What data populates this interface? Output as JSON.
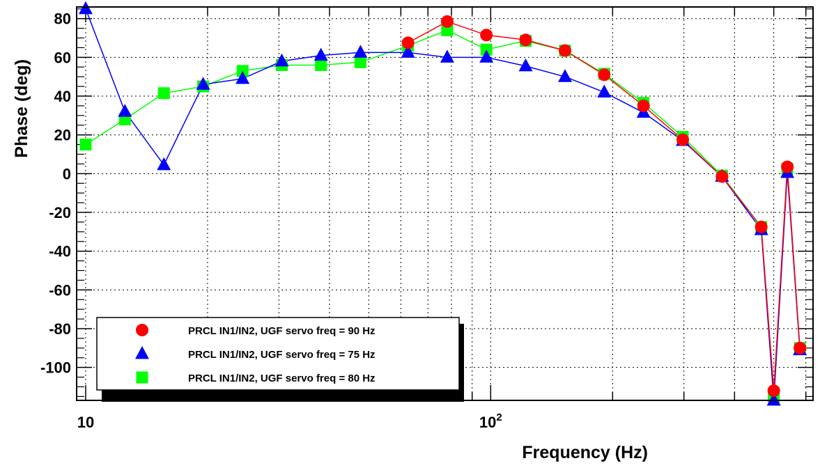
{
  "chart_data": {
    "type": "line",
    "title": "",
    "xlabel": "Frequency (Hz)",
    "ylabel": "Phase (deg)",
    "x_scale": "log",
    "xlim": [
      9.5,
      625
    ],
    "ylim": [
      -117,
      86
    ],
    "grid": true,
    "x_ticks": [
      {
        "value": 10,
        "label": "10",
        "sup": ""
      },
      {
        "value": 100,
        "label": "10",
        "sup": "2"
      }
    ],
    "y_ticks": [
      80,
      60,
      40,
      20,
      0,
      -20,
      -40,
      -60,
      -80,
      -100
    ],
    "legend_position": "bottom-left",
    "series": [
      {
        "name": "PRCL IN1/IN2, UGF servo freq = 90 Hz",
        "color": "#ff0000",
        "marker": "circle",
        "points": [
          [
            62.5,
            67.5
          ],
          [
            78.1,
            78.5
          ],
          [
            97.6,
            71.5
          ],
          [
            122,
            69
          ],
          [
            152.6,
            63.5
          ],
          [
            190.7,
            51
          ],
          [
            238.4,
            35
          ],
          [
            298,
            17.5
          ],
          [
            372.5,
            -1.5
          ],
          [
            465.7,
            -27.5
          ],
          [
            500.0,
            -112
          ],
          [
            540,
            3.5
          ],
          [
            580,
            -90
          ]
        ]
      },
      {
        "name": "PRCL IN1/IN2, UGF servo freq = 75 Hz",
        "color": "#0000ff",
        "marker": "triangle",
        "points": [
          [
            10,
            85
          ],
          [
            12.5,
            32
          ],
          [
            15.6,
            4.5
          ],
          [
            19.5,
            46
          ],
          [
            24.4,
            49
          ],
          [
            30.5,
            58
          ],
          [
            38.1,
            61
          ],
          [
            47.7,
            62.5
          ],
          [
            62.5,
            62.5
          ],
          [
            78.1,
            60
          ],
          [
            97.6,
            60
          ],
          [
            122,
            55.5
          ],
          [
            152.6,
            50
          ],
          [
            190.7,
            42
          ],
          [
            238.4,
            31.5
          ],
          [
            298,
            17
          ],
          [
            372.5,
            -1.5
          ],
          [
            465.7,
            -29
          ],
          [
            500.0,
            -117
          ],
          [
            540,
            0.5
          ],
          [
            580,
            -91
          ]
        ]
      },
      {
        "name": "PRCL IN1/IN2, UGF servo freq = 80 Hz",
        "color": "#00ff00",
        "marker": "square",
        "points": [
          [
            10,
            15
          ],
          [
            12.5,
            28
          ],
          [
            15.6,
            41.5
          ],
          [
            19.5,
            45
          ],
          [
            24.4,
            53
          ],
          [
            30.5,
            56
          ],
          [
            38.1,
            56
          ],
          [
            47.7,
            57.5
          ],
          [
            62.5,
            66
          ],
          [
            78.1,
            74
          ],
          [
            97.6,
            64
          ],
          [
            122,
            68.5
          ],
          [
            152.6,
            63.5
          ],
          [
            190.7,
            51.5
          ],
          [
            238.4,
            36.5
          ],
          [
            298,
            19
          ],
          [
            372.5,
            -1
          ],
          [
            465.7,
            -27.5
          ],
          [
            500.0,
            -115
          ],
          [
            540,
            2.5
          ],
          [
            580,
            -90
          ]
        ]
      }
    ]
  }
}
